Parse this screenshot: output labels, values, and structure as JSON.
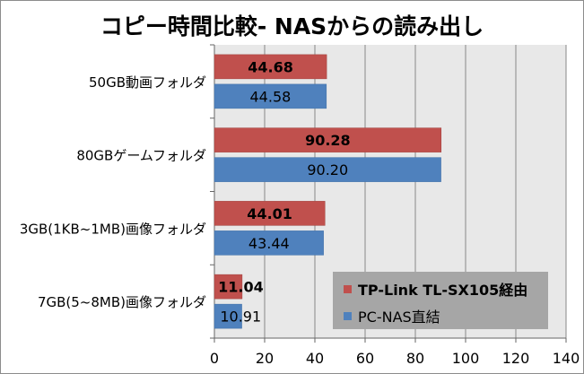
{
  "chart_data": {
    "type": "bar",
    "orientation": "horizontal",
    "title": "コピー時間比較- NASからの読み出し",
    "categories": [
      "50GB動画フォルダ",
      "80GBゲームフォルダ",
      "3GB(1KB~1MB)画像フォルダ",
      "7GB(5~8MB)画像フォルダ"
    ],
    "series": [
      {
        "name": "TP-Link TL-SX105経由",
        "color": "#c0504d",
        "values": [
          44.68,
          90.28,
          44.01,
          11.04
        ],
        "labels": [
          "44.68",
          "90.28",
          "44.01",
          "11.04"
        ],
        "label_bold": true
      },
      {
        "name": "PC-NAS直結",
        "color": "#4f81bd",
        "values": [
          44.58,
          90.2,
          43.44,
          10.91
        ],
        "labels": [
          "44.58",
          "90.20",
          "43.44",
          "10.91"
        ],
        "label_bold": false
      }
    ],
    "xlim": [
      0,
      140
    ],
    "xticks": [
      "0",
      "20",
      "40",
      "60",
      "80",
      "100",
      "120",
      "140"
    ],
    "xlabel": "",
    "ylabel": "",
    "grid": "vertical",
    "legend_position": "bottom-right",
    "plot_background": "#e8e8e8"
  }
}
